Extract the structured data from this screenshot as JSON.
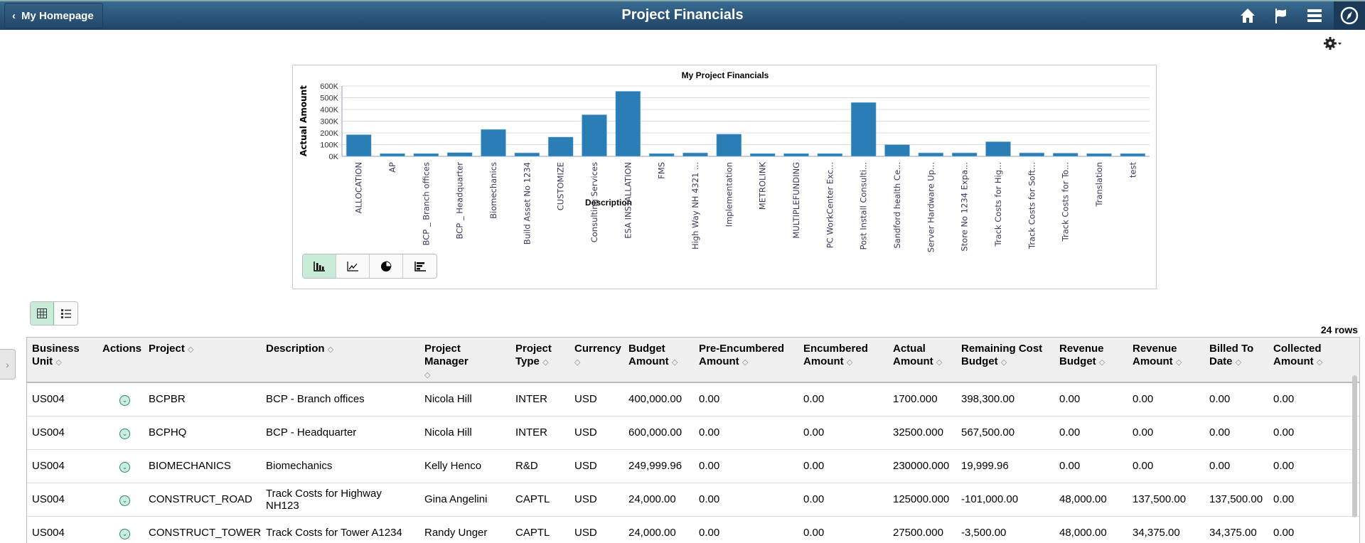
{
  "header": {
    "back_label": "My Homepage",
    "title": "Project Financials"
  },
  "chart_data": {
    "type": "bar",
    "title": "My Project Financials",
    "xlabel": "Description",
    "ylabel": "Actual Amount",
    "ylim": [
      0,
      600000
    ],
    "yticks": [
      "0K",
      "100K",
      "200K",
      "300K",
      "400K",
      "500K",
      "600K"
    ],
    "grid": true,
    "color": "#2a7db5",
    "categories": [
      "ALLOCATION",
      "AP",
      "BCP _ Branch offices",
      "BCP _ Headquarter",
      "Biomechanics",
      "Build Asset No 1234",
      "CUSTOMIZE",
      "Consulting Services",
      "ESA INSTALLATION",
      "FMS",
      "High Way NH 4321 ...",
      "Implementation",
      "METROLINK",
      "MULTIPLEFUNDING",
      "PC WorkCenter Exc...",
      "Post Install Consulti...",
      "Sandford health Ce...",
      "Server Hardware Up...",
      "Store No 1234 Expa...",
      "Track Costs for Hig...",
      "Track Costs for Soft...",
      "Track Costs for To...",
      "Translation",
      "test"
    ],
    "values": [
      185000,
      15000,
      1700,
      32500,
      230000,
      30000,
      165000,
      355000,
      555000,
      15000,
      30000,
      190000,
      15000,
      15000,
      15000,
      460000,
      100000,
      30000,
      30000,
      125000,
      30000,
      27500,
      15000,
      15000
    ]
  },
  "chart_types": {
    "active": "bar",
    "items": [
      "bar",
      "line",
      "pie",
      "horizontal-bar"
    ]
  },
  "grid": {
    "row_count": "24 rows",
    "columns": [
      [
        "Business",
        "Unit"
      ],
      [
        "Actions",
        ""
      ],
      [
        "Project",
        ""
      ],
      [
        "Description",
        ""
      ],
      [
        "Project Manager",
        ""
      ],
      [
        "Project",
        "Type"
      ],
      [
        "Currency",
        ""
      ],
      [
        "Budget",
        "Amount"
      ],
      [
        "Pre-Encumbered",
        "Amount"
      ],
      [
        "Encumbered",
        "Amount"
      ],
      [
        "Actual",
        "Amount"
      ],
      [
        "Remaining Cost",
        "Budget"
      ],
      [
        "Revenue",
        "Budget"
      ],
      [
        "Revenue",
        "Amount"
      ],
      [
        "Billed To",
        "Date"
      ],
      [
        "Collected",
        "Amount"
      ]
    ],
    "rows": [
      [
        "US004",
        "",
        "BCPBR",
        "BCP - Branch offices",
        "Nicola Hill",
        "INTER",
        "USD",
        "400,000.00",
        "0.00",
        "0.00",
        "1700.000",
        "398,300.00",
        "0.00",
        "0.00",
        "0.00",
        "0.00"
      ],
      [
        "US004",
        "",
        "BCPHQ",
        "BCP - Headquarter",
        "Nicola Hill",
        "INTER",
        "USD",
        "600,000.00",
        "0.00",
        "0.00",
        "32500.000",
        "567,500.00",
        "0.00",
        "0.00",
        "0.00",
        "0.00"
      ],
      [
        "US004",
        "",
        "BIOMECHANICS",
        "Biomechanics",
        "Kelly Henco",
        "R&D",
        "USD",
        "249,999.96",
        "0.00",
        "0.00",
        "230000.000",
        "19,999.96",
        "0.00",
        "0.00",
        "0.00",
        "0.00"
      ],
      [
        "US004",
        "",
        "CONSTRUCT_ROAD",
        "Track Costs for Highway NH123",
        "Gina Angelini",
        "CAPTL",
        "USD",
        "24,000.00",
        "0.00",
        "0.00",
        "125000.000",
        "-101,000.00",
        "48,000.00",
        "137,500.00",
        "137,500.00",
        "0.00"
      ],
      [
        "US004",
        "",
        "CONSTRUCT_TOWER",
        "Track Costs for Tower A1234",
        "Randy Unger",
        "CAPTL",
        "USD",
        "24,000.00",
        "0.00",
        "0.00",
        "27500.000",
        "-3,500.00",
        "48,000.00",
        "34,375.00",
        "34,375.00",
        "0.00"
      ]
    ]
  }
}
